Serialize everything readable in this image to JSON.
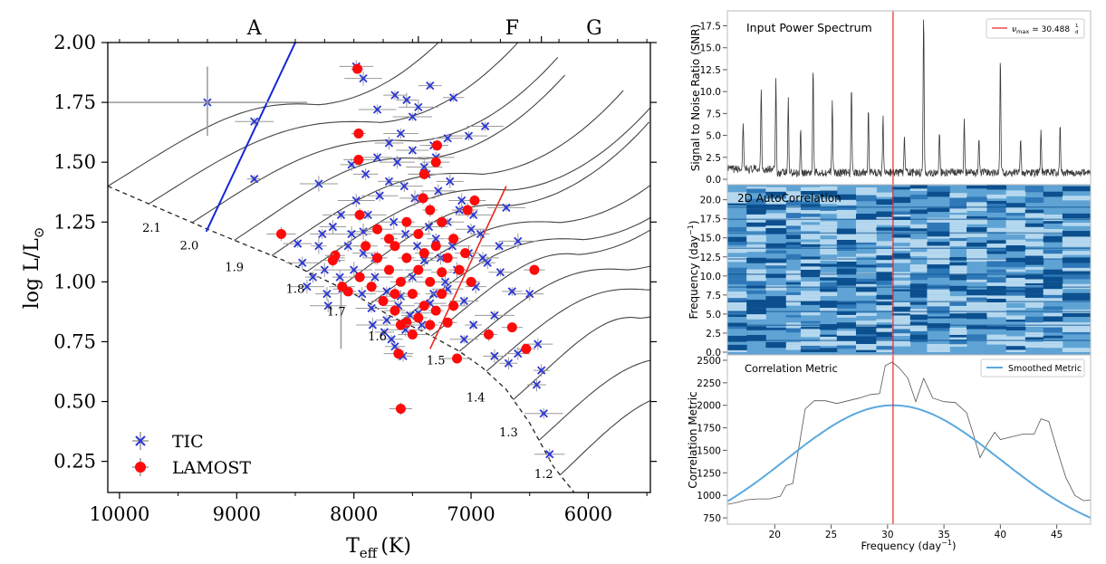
{
  "chart_data": [
    {
      "type": "scatter",
      "xlabel_main": "T",
      "xlabel_sub": "eff",
      "xlabel_unit": "(K)",
      "ylabel_main": "log L/L",
      "ylabel_sym": "⊙",
      "xlim": [
        10100,
        5470
      ],
      "ylim": [
        0.12,
        2.0
      ],
      "x_ticks": [
        10000,
        9000,
        8000,
        7000,
        6000
      ],
      "y_ticks": [
        0.25,
        0.5,
        0.75,
        1.0,
        1.25,
        1.5,
        1.75,
        2.0
      ],
      "y_tick_labels": [
        "0.25",
        "0.50",
        "0.75",
        "1.00",
        "1.25",
        "1.50",
        "1.75",
        "2.00"
      ],
      "spectral_classes": [
        {
          "label": "A",
          "center": 8850
        },
        {
          "label": "F",
          "center": 6650
        },
        {
          "label": "G",
          "center": 5950
        }
      ],
      "spectral_boundaries": [
        7450,
        6400
      ],
      "zams": [
        [
          10100,
          1.4
        ],
        [
          9200,
          1.21
        ],
        [
          8600,
          1.09
        ],
        [
          8300,
          1.02
        ],
        [
          8000,
          0.95
        ],
        [
          7700,
          0.86
        ],
        [
          7400,
          0.79
        ],
        [
          7100,
          0.71
        ],
        [
          6900,
          0.64
        ],
        [
          6700,
          0.55
        ],
        [
          6500,
          0.41
        ],
        [
          6300,
          0.23
        ],
        [
          6120,
          0.12
        ]
      ],
      "mass_labels": [
        {
          "text": "2.1",
          "x": 9725,
          "y": 1.21
        },
        {
          "text": "2.0",
          "x": 9405,
          "y": 1.135
        },
        {
          "text": "1.9",
          "x": 9020,
          "y": 1.045
        },
        {
          "text": "1.8",
          "x": 8500,
          "y": 0.955
        },
        {
          "text": "1.7",
          "x": 8150,
          "y": 0.86
        },
        {
          "text": "1.6",
          "x": 7800,
          "y": 0.755
        },
        {
          "text": "1.5",
          "x": 7300,
          "y": 0.655
        },
        {
          "text": "1.4",
          "x": 6960,
          "y": 0.5
        },
        {
          "text": "1.3",
          "x": 6680,
          "y": 0.355
        },
        {
          "text": "1.2",
          "x": 6380,
          "y": 0.18
        }
      ],
      "blue_edge": [
        [
          9260,
          1.21
        ],
        [
          8500,
          2.0
        ]
      ],
      "red_edge": [
        [
          7350,
          0.72
        ],
        [
          6700,
          1.4
        ]
      ],
      "tic_sample": [
        [
          9250,
          1.75
        ],
        [
          8850,
          1.67
        ],
        [
          8850,
          1.43
        ],
        [
          7980,
          1.9
        ],
        [
          7920,
          1.85
        ],
        [
          7650,
          1.78
        ],
        [
          7550,
          1.76
        ],
        [
          7500,
          1.69
        ],
        [
          7350,
          1.82
        ],
        [
          7150,
          1.77
        ],
        [
          6880,
          1.65
        ],
        [
          7020,
          1.61
        ],
        [
          8300,
          1.41
        ],
        [
          8020,
          1.49
        ],
        [
          7320,
          1.57
        ],
        [
          7800,
          1.72
        ],
        [
          7450,
          1.73
        ],
        [
          6700,
          1.31
        ],
        [
          6600,
          1.17
        ],
        [
          6750,
          1.04
        ],
        [
          6900,
          1.1
        ],
        [
          6650,
          0.96
        ],
        [
          6800,
          0.86
        ],
        [
          6500,
          0.95
        ],
        [
          6430,
          0.74
        ],
        [
          6600,
          0.7
        ],
        [
          6800,
          0.69
        ],
        [
          6680,
          0.66
        ],
        [
          6400,
          0.63
        ],
        [
          6440,
          0.57
        ],
        [
          6380,
          0.45
        ],
        [
          6330,
          0.28
        ],
        [
          6980,
          0.82
        ],
        [
          7060,
          0.76
        ],
        [
          7580,
          0.69
        ],
        [
          7650,
          0.73
        ],
        [
          8480,
          1.16
        ],
        [
          8440,
          1.08
        ],
        [
          8270,
          1.2
        ],
        [
          8110,
          1.28
        ],
        [
          7820,
          1.1
        ],
        [
          8000,
          1.05
        ],
        [
          7930,
          0.95
        ],
        [
          7850,
          0.89
        ],
        [
          7720,
          0.84
        ],
        [
          7600,
          0.94
        ],
        [
          7500,
          1.02
        ],
        [
          7400,
          1.09
        ],
        [
          7300,
          1.18
        ],
        [
          7200,
          1.25
        ],
        [
          7100,
          1.3
        ],
        [
          7000,
          1.22
        ],
        [
          7200,
          0.97
        ],
        [
          7350,
          0.91
        ],
        [
          7450,
          0.87
        ],
        [
          7560,
          0.8
        ],
        [
          7680,
          0.76
        ],
        [
          7920,
          1.21
        ],
        [
          8050,
          1.15
        ],
        [
          8150,
          1.1
        ],
        [
          8250,
          1.05
        ],
        [
          8350,
          1.02
        ],
        [
          8400,
          0.98
        ],
        [
          8230,
          0.95
        ],
        [
          8100,
          0.97
        ],
        [
          7980,
          1.34
        ],
        [
          7880,
          1.28
        ],
        [
          7780,
          1.36
        ],
        [
          7700,
          1.42
        ],
        [
          7630,
          1.5
        ],
        [
          7570,
          1.4
        ],
        [
          7480,
          1.35
        ],
        [
          7380,
          1.45
        ],
        [
          7280,
          1.38
        ],
        [
          7180,
          1.42
        ],
        [
          7080,
          1.34
        ],
        [
          6980,
          1.28
        ],
        [
          6920,
          1.2
        ],
        [
          7020,
          1.12
        ],
        [
          7120,
          1.05
        ],
        [
          7220,
          1.0
        ],
        [
          7320,
          0.95
        ],
        [
          7420,
          0.82
        ],
        [
          7520,
          0.86
        ],
        [
          7620,
          0.9
        ],
        [
          7720,
          0.96
        ],
        [
          7820,
          1.02
        ],
        [
          7920,
          1.12
        ],
        [
          8020,
          1.2
        ],
        [
          8120,
          1.02
        ],
        [
          8220,
          0.9
        ],
        [
          7900,
          1.45
        ],
        [
          7800,
          1.52
        ],
        [
          7700,
          1.58
        ],
        [
          7600,
          1.62
        ],
        [
          7500,
          1.55
        ],
        [
          7400,
          1.48
        ],
        [
          7300,
          1.52
        ],
        [
          7200,
          1.6
        ],
        [
          7660,
          1.25
        ],
        [
          7560,
          1.2
        ],
        [
          7460,
          1.15
        ],
        [
          7360,
          1.23
        ],
        [
          7260,
          1.1
        ],
        [
          7160,
          1.15
        ],
        [
          7060,
          0.92
        ],
        [
          6960,
          0.98
        ],
        [
          6860,
          1.08
        ],
        [
          6760,
          1.15
        ],
        [
          8180,
          1.23
        ],
        [
          8300,
          1.15
        ],
        [
          7840,
          0.82
        ],
        [
          7740,
          0.79
        ]
      ],
      "lamost_sample": [
        [
          7970,
          1.89
        ],
        [
          7960,
          1.62
        ],
        [
          7960,
          1.51
        ],
        [
          7290,
          1.57
        ],
        [
          7300,
          1.5
        ],
        [
          7400,
          1.45
        ],
        [
          7410,
          1.35
        ],
        [
          6970,
          1.34
        ],
        [
          7030,
          1.3
        ],
        [
          8620,
          1.2
        ],
        [
          8160,
          1.11
        ],
        [
          8180,
          1.09
        ],
        [
          6460,
          1.05
        ],
        [
          6650,
          0.81
        ],
        [
          6850,
          0.78
        ],
        [
          6530,
          0.72
        ],
        [
          7620,
          0.7
        ],
        [
          7120,
          0.68
        ],
        [
          7600,
          0.47
        ],
        [
          7950,
          1.28
        ],
        [
          7800,
          1.22
        ],
        [
          7650,
          1.15
        ],
        [
          7550,
          1.1
        ],
        [
          7450,
          1.05
        ],
        [
          7350,
          1.0
        ],
        [
          7250,
          0.95
        ],
        [
          7150,
          0.9
        ],
        [
          7500,
          0.95
        ],
        [
          7400,
          0.9
        ],
        [
          7600,
          1.0
        ],
        [
          7700,
          1.05
        ],
        [
          7800,
          1.1
        ],
        [
          7900,
          1.15
        ],
        [
          7300,
          1.15
        ],
        [
          7200,
          1.1
        ],
        [
          7100,
          1.05
        ],
        [
          7000,
          1.0
        ],
        [
          7250,
          1.25
        ],
        [
          7350,
          1.3
        ],
        [
          7450,
          1.2
        ],
        [
          7550,
          1.25
        ],
        [
          7650,
          0.95
        ],
        [
          7750,
          0.92
        ],
        [
          7850,
          0.98
        ],
        [
          7950,
          1.02
        ],
        [
          8050,
          0.96
        ],
        [
          8100,
          0.98
        ],
        [
          7450,
          0.85
        ],
        [
          7350,
          0.82
        ],
        [
          7550,
          0.83
        ],
        [
          7250,
          1.04
        ],
        [
          7150,
          1.18
        ],
        [
          7050,
          1.12
        ],
        [
          7650,
          0.88
        ],
        [
          7700,
          1.18
        ],
        [
          7400,
          1.12
        ],
        [
          7500,
          0.78
        ],
        [
          7600,
          0.82
        ],
        [
          7300,
          0.88
        ],
        [
          7200,
          0.83
        ]
      ],
      "legend": [
        {
          "label": "TIC",
          "marker": "x",
          "color": "#2b36d6"
        },
        {
          "label": "LAMOST",
          "marker": "o",
          "color": "#ff0a0a"
        }
      ],
      "colors": {
        "tic": "#2b36d6",
        "lamost": "#ff0a0a",
        "errorbar": "#999999",
        "track": "#444444",
        "blue_edge": "#1426d8",
        "red_edge": "#e8261e"
      }
    },
    {
      "type": "line",
      "title": "Input Power Spectrum",
      "ylabel": "Signal to Noise Ratio (SNR)",
      "ylim": [
        0,
        19
      ],
      "y_ticks": [
        0.0,
        2.5,
        5.0,
        7.5,
        10.0,
        12.5,
        15.0,
        17.5
      ],
      "y_tick_labels": [
        "0.0",
        "2.5",
        "5.0",
        "7.5",
        "10.0",
        "12.5",
        "15.0",
        "17.5"
      ],
      "numax_label": "ν",
      "numax_sub": "max",
      "numax_value": "= 30.488",
      "numax_unit_top": "1",
      "numax_unit_bottom": "d",
      "peaks": [
        [
          17.2,
          5
        ],
        [
          18.8,
          9.5
        ],
        [
          20.1,
          10.5
        ],
        [
          21.2,
          8.2
        ],
        [
          22.3,
          5
        ],
        [
          23.4,
          12
        ],
        [
          25.1,
          8.5
        ],
        [
          26.8,
          10
        ],
        [
          28.3,
          7.5
        ],
        [
          29.6,
          6.5
        ],
        [
          31.5,
          4.5
        ],
        [
          33.2,
          18.5
        ],
        [
          34.6,
          5
        ],
        [
          36.8,
          6.5
        ],
        [
          38.1,
          4
        ],
        [
          40.0,
          13
        ],
        [
          41.8,
          4
        ],
        [
          43.6,
          5
        ],
        [
          45.3,
          6
        ]
      ],
      "colors": {
        "line": "#3a3a3a",
        "numax": "#e8262a"
      }
    },
    {
      "type": "heatmap",
      "title": "2D AutoCorrelation",
      "ylabel": "Frequency (day",
      "ylabel_sup": "−1",
      "ylabel_close": ")",
      "ylim": [
        0,
        21.5
      ],
      "y_ticks": [
        0.0,
        2.5,
        5.0,
        7.5,
        10.0,
        12.5,
        15.0,
        17.5,
        20.0
      ],
      "y_tick_labels": [
        "0.0",
        "2.5",
        "5.0",
        "7.5",
        "10.0",
        "12.5",
        "15.0",
        "17.5",
        "20.0"
      ],
      "colors": {
        "background": "#5ea3d4",
        "dark": "#0b4f8e",
        "light": "#b5d8ef",
        "numax": "#e8262a"
      }
    },
    {
      "type": "line",
      "title": "Correlation Metric",
      "xlabel": "Frequency (day",
      "xlabel_sup": "−1",
      "xlabel_close": ")",
      "ylabel": "Correlation Metric",
      "xlim": [
        15.8,
        48
      ],
      "ylim": [
        680,
        2560
      ],
      "x_ticks": [
        20,
        25,
        30,
        35,
        40,
        45
      ],
      "y_ticks": [
        750,
        1000,
        1250,
        1500,
        1750,
        2000,
        2250,
        2500
      ],
      "legend": [
        {
          "label": "Smoothed Metric",
          "color": "#5aa9dd"
        }
      ],
      "raw_metric": [
        [
          15.8,
          900
        ],
        [
          16.6,
          920
        ],
        [
          17.5,
          950
        ],
        [
          18.5,
          960
        ],
        [
          19.5,
          960
        ],
        [
          20.5,
          990
        ],
        [
          21.0,
          1110
        ],
        [
          21.6,
          1130
        ],
        [
          22.2,
          1580
        ],
        [
          22.7,
          1960
        ],
        [
          23.5,
          2050
        ],
        [
          24.5,
          2050
        ],
        [
          25.5,
          2020
        ],
        [
          26.5,
          2050
        ],
        [
          27.5,
          2080
        ],
        [
          28.5,
          2120
        ],
        [
          29.3,
          2130
        ],
        [
          29.8,
          2440
        ],
        [
          30.4,
          2480
        ],
        [
          31.0,
          2420
        ],
        [
          31.8,
          2300
        ],
        [
          32.5,
          2040
        ],
        [
          33.2,
          2300
        ],
        [
          34.0,
          2080
        ],
        [
          35.0,
          2040
        ],
        [
          36.0,
          2030
        ],
        [
          37.0,
          1920
        ],
        [
          37.6,
          1680
        ],
        [
          38.2,
          1420
        ],
        [
          38.8,
          1560
        ],
        [
          39.5,
          1700
        ],
        [
          40.0,
          1620
        ],
        [
          41.0,
          1650
        ],
        [
          42.0,
          1680
        ],
        [
          43.0,
          1680
        ],
        [
          43.6,
          1850
        ],
        [
          44.3,
          1820
        ],
        [
          45.0,
          1520
        ],
        [
          45.8,
          1200
        ],
        [
          46.6,
          1000
        ],
        [
          47.4,
          940
        ],
        [
          48.0,
          950
        ]
      ],
      "smoothed_center": 30.5,
      "smoothed_peak": 2000,
      "smoothed_base": 470,
      "smoothed_sigma": 9.5,
      "numax": 30.488,
      "colors": {
        "raw": "#555555",
        "smoothed": "#5aa9dd",
        "numax": "#e8262a"
      }
    }
  ]
}
